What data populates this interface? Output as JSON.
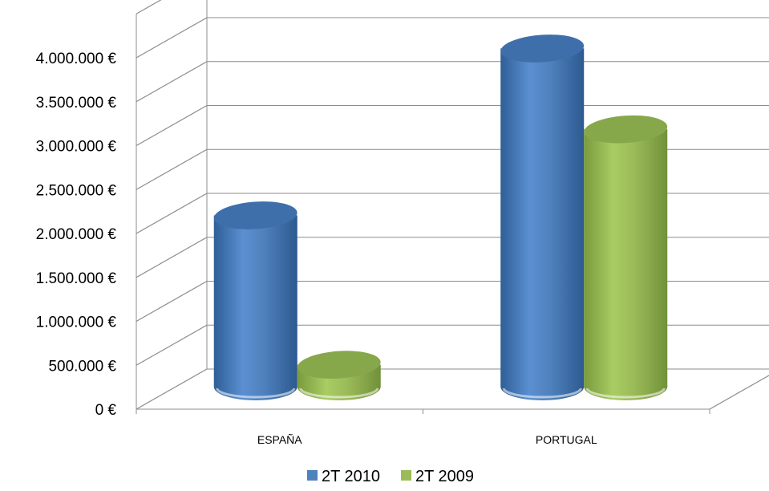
{
  "chart_data": {
    "type": "bar",
    "style": "3d-cylinder",
    "categories": [
      "ESPAÑA",
      "PORTUGAL"
    ],
    "series": [
      {
        "name": "2T 2010",
        "color": "#4f81bd",
        "values": [
          1950000,
          3850000
        ]
      },
      {
        "name": "2T 2009",
        "color": "#9bbb59",
        "values": [
          250000,
          2930000
        ]
      }
    ],
    "y_ticks": [
      "0 €",
      "500.000 €",
      "1.000.000 €",
      "1.500.000 €",
      "2.000.000 €",
      "2.500.000 €",
      "3.000.000 €",
      "3.500.000 €",
      "4.000.000 €"
    ],
    "ylim": [
      0,
      4000000
    ],
    "grid": true,
    "legend_position": "bottom"
  }
}
